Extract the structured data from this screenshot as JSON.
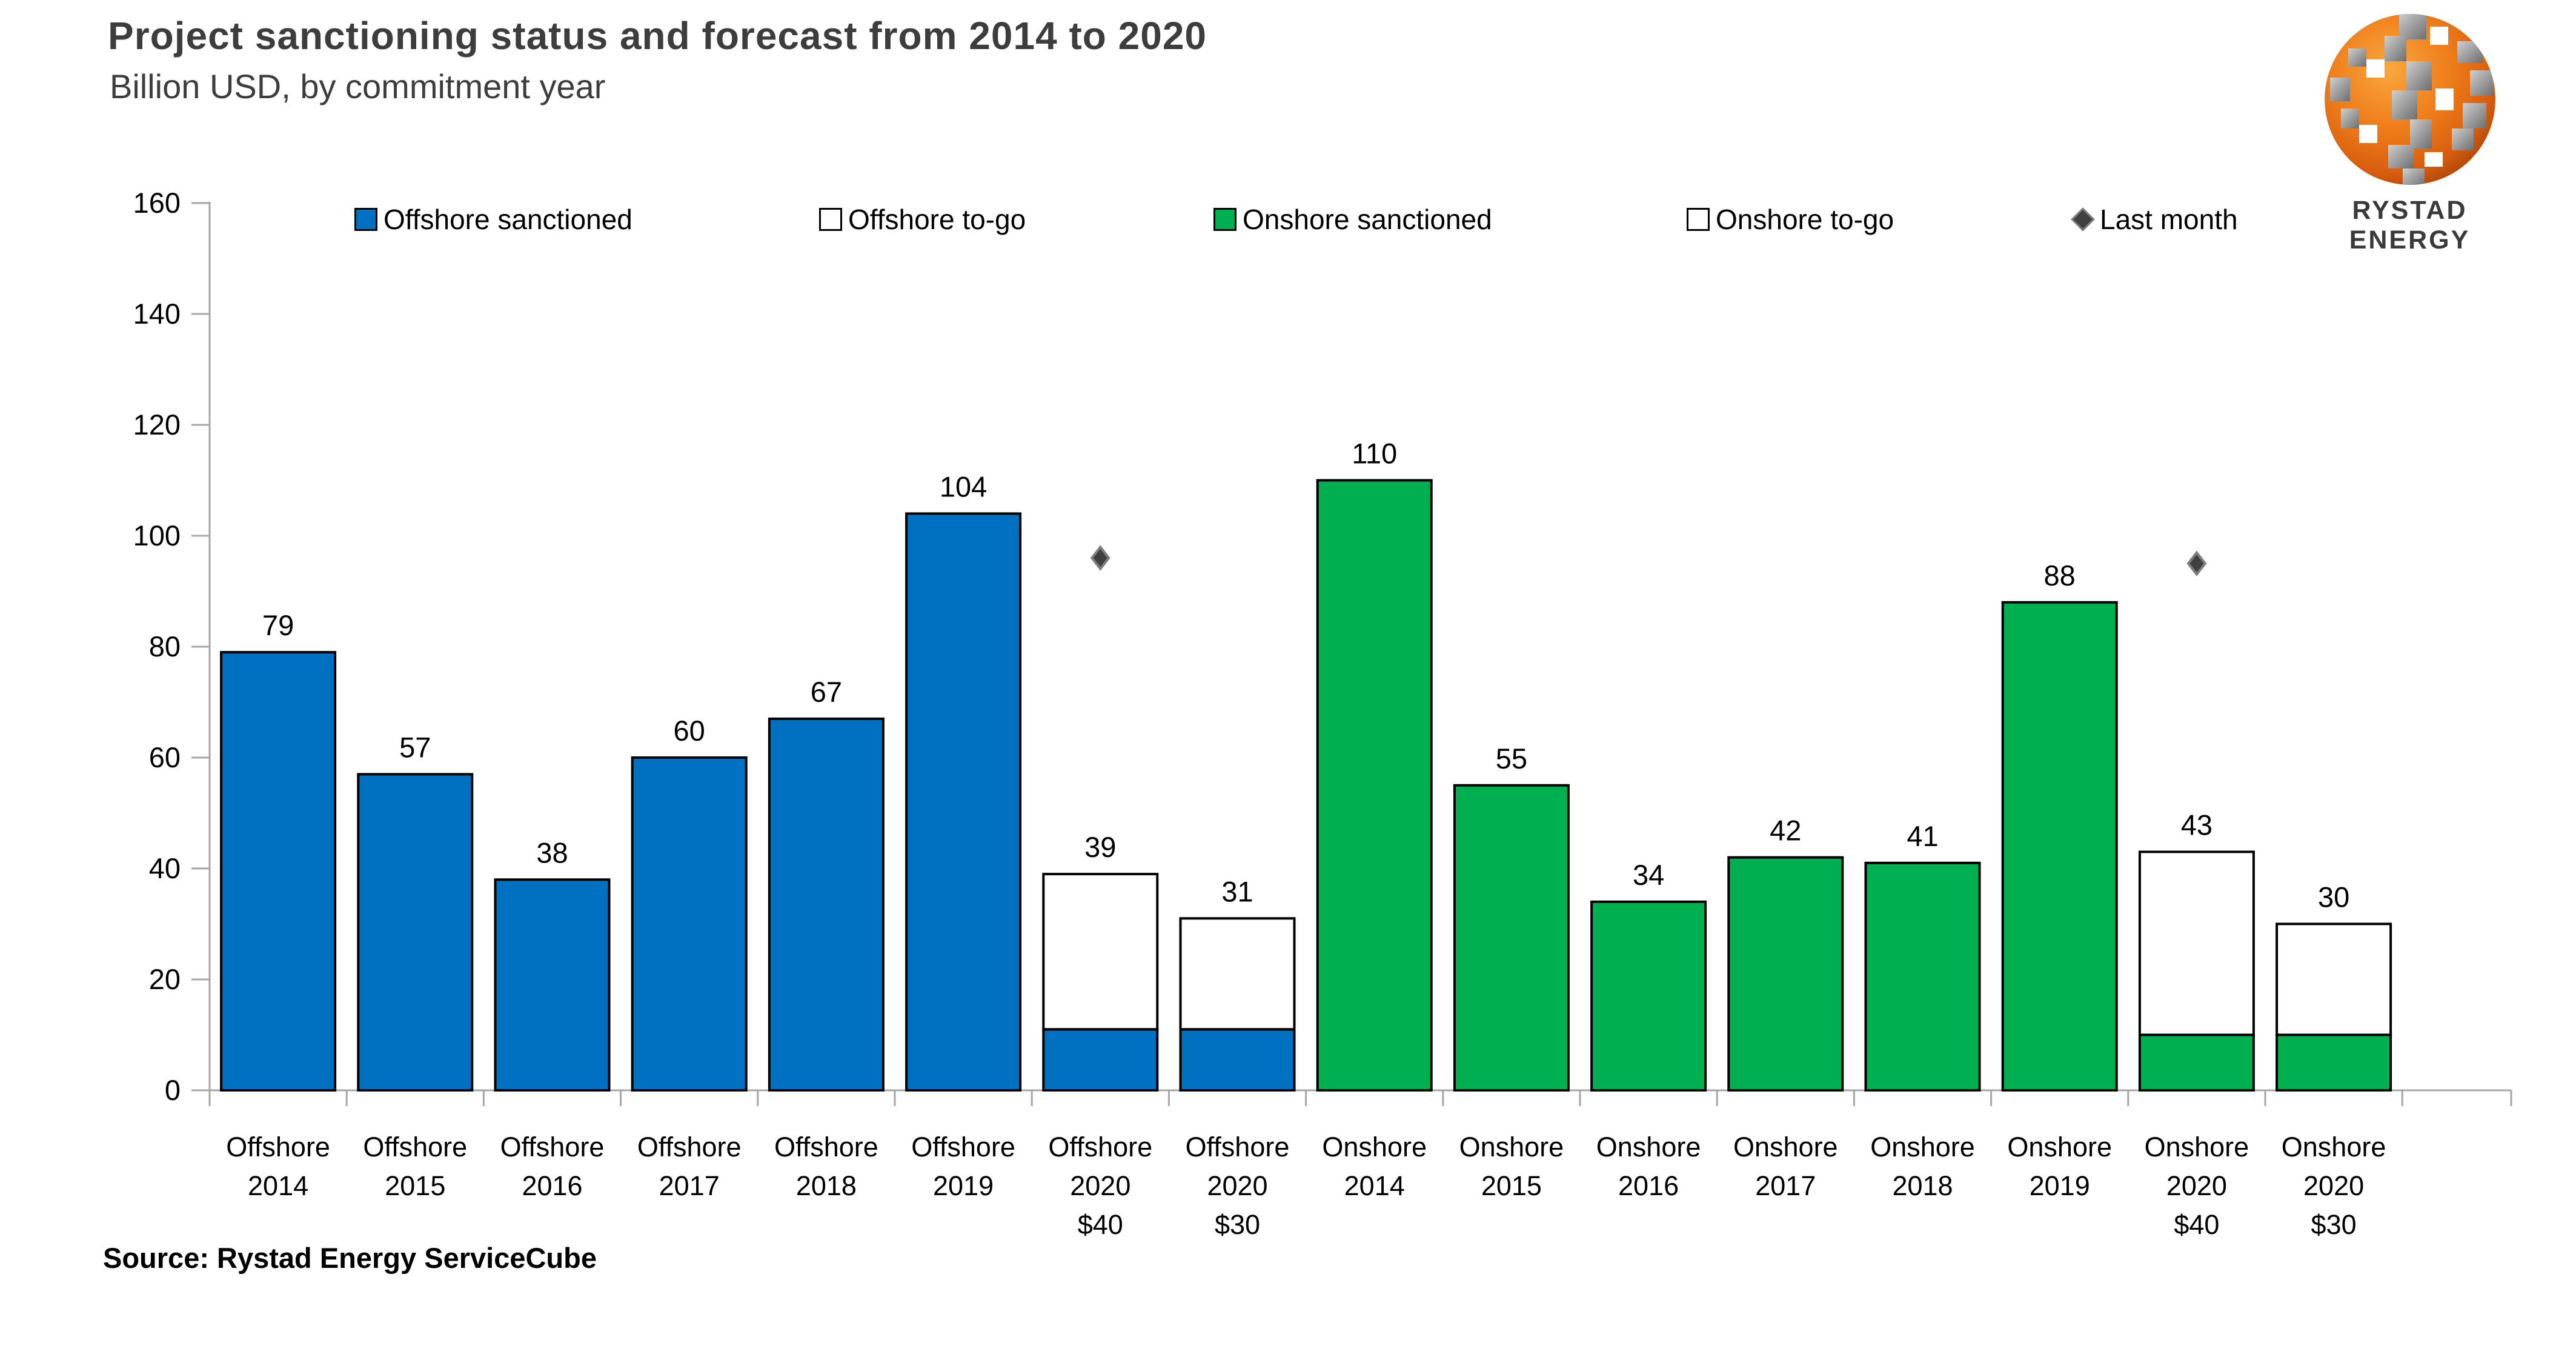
{
  "header": {
    "title": "Project sanctioning status and forecast from 2014 to 2020",
    "subtitle": "Billion USD, by commitment year",
    "logo_text": "RYSTAD ENERGY"
  },
  "source": "Source: Rystad Energy ServiceCube",
  "colors": {
    "offshore_sanctioned": "#0070C0",
    "onshore_sanctioned": "#00B050",
    "togo_fill": "#FFFFFF",
    "bar_border": "#000000",
    "axis": "#A6A6A6",
    "marker_fill": "#404040",
    "marker_border": "#7F7F7F",
    "title_text": "#3D3D3D",
    "logo_orange": "#EF7D1A",
    "logo_gray": "#9B9B9B"
  },
  "legend": {
    "items": [
      {
        "label": "Offshore sanctioned",
        "swatch": "offshore_sanctioned"
      },
      {
        "label": "Offshore to-go",
        "swatch": "togo_fill"
      },
      {
        "label": "Onshore sanctioned",
        "swatch": "onshore_sanctioned"
      },
      {
        "label": "Onshore to-go",
        "swatch": "togo_fill"
      },
      {
        "label": "Last month",
        "swatch": "marker_fill"
      }
    ]
  },
  "chart_data": {
    "type": "bar",
    "stacked": true,
    "title": "Project sanctioning status and forecast from 2014 to 2020",
    "subtitle": "Billion USD, by commitment year",
    "xlabel": "",
    "ylabel": "Billion USD",
    "ylim": [
      0,
      160
    ],
    "ytick_step": 20,
    "yticks": [
      0,
      20,
      40,
      60,
      80,
      100,
      120,
      140,
      160
    ],
    "grid": false,
    "legend_position": "top",
    "series_fill": {
      "Offshore sanctioned": "#0070C0",
      "Offshore to-go": "#FFFFFF",
      "Onshore sanctioned": "#00B050",
      "Onshore to-go": "#FFFFFF"
    },
    "bars": [
      {
        "category_lines": [
          "Offshore",
          "2014"
        ],
        "total_label": "79",
        "segments": [
          {
            "series": "Offshore sanctioned",
            "value": 79
          }
        ]
      },
      {
        "category_lines": [
          "Offshore",
          "2015"
        ],
        "total_label": "57",
        "segments": [
          {
            "series": "Offshore sanctioned",
            "value": 57
          }
        ]
      },
      {
        "category_lines": [
          "Offshore",
          "2016"
        ],
        "total_label": "38",
        "segments": [
          {
            "series": "Offshore sanctioned",
            "value": 38
          }
        ]
      },
      {
        "category_lines": [
          "Offshore",
          "2017"
        ],
        "total_label": "60",
        "segments": [
          {
            "series": "Offshore sanctioned",
            "value": 60
          }
        ]
      },
      {
        "category_lines": [
          "Offshore",
          "2018"
        ],
        "total_label": "67",
        "segments": [
          {
            "series": "Offshore sanctioned",
            "value": 67
          }
        ]
      },
      {
        "category_lines": [
          "Offshore",
          "2019"
        ],
        "total_label": "104",
        "segments": [
          {
            "series": "Offshore sanctioned",
            "value": 104
          }
        ]
      },
      {
        "category_lines": [
          "Offshore",
          "2020",
          "$40"
        ],
        "total_label": "39",
        "segments": [
          {
            "series": "Offshore sanctioned",
            "value": 11
          },
          {
            "series": "Offshore to-go",
            "value": 28
          }
        ],
        "last_month": 96
      },
      {
        "category_lines": [
          "Offshore",
          "2020",
          "$30"
        ],
        "total_label": "31",
        "segments": [
          {
            "series": "Offshore sanctioned",
            "value": 11
          },
          {
            "series": "Offshore to-go",
            "value": 20
          }
        ]
      },
      {
        "category_lines": [
          "Onshore",
          "2014"
        ],
        "total_label": "110",
        "segments": [
          {
            "series": "Onshore sanctioned",
            "value": 110
          }
        ]
      },
      {
        "category_lines": [
          "Onshore",
          "2015"
        ],
        "total_label": "55",
        "segments": [
          {
            "series": "Onshore sanctioned",
            "value": 55
          }
        ]
      },
      {
        "category_lines": [
          "Onshore",
          "2016"
        ],
        "total_label": "34",
        "segments": [
          {
            "series": "Onshore sanctioned",
            "value": 34
          }
        ]
      },
      {
        "category_lines": [
          "Onshore",
          "2017"
        ],
        "total_label": "42",
        "segments": [
          {
            "series": "Onshore sanctioned",
            "value": 42
          }
        ]
      },
      {
        "category_lines": [
          "Onshore",
          "2018"
        ],
        "total_label": "41",
        "segments": [
          {
            "series": "Onshore sanctioned",
            "value": 41
          }
        ]
      },
      {
        "category_lines": [
          "Onshore",
          "2019"
        ],
        "total_label": "88",
        "segments": [
          {
            "series": "Onshore sanctioned",
            "value": 88
          }
        ]
      },
      {
        "category_lines": [
          "Onshore",
          "2020",
          "$40"
        ],
        "total_label": "43",
        "segments": [
          {
            "series": "Onshore sanctioned",
            "value": 10
          },
          {
            "series": "Onshore to-go",
            "value": 33
          }
        ],
        "last_month": 95
      },
      {
        "category_lines": [
          "Onshore",
          "2020",
          "$30"
        ],
        "total_label": "30",
        "segments": [
          {
            "series": "Onshore sanctioned",
            "value": 10
          },
          {
            "series": "Onshore to-go",
            "value": 20
          }
        ]
      }
    ]
  }
}
